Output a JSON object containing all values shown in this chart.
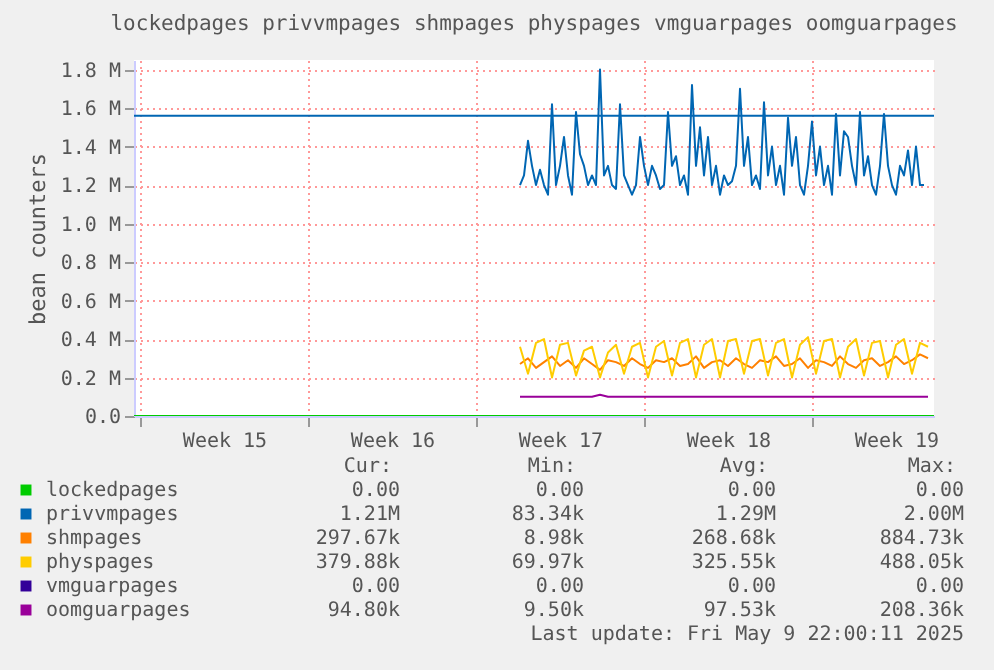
{
  "chart_data": {
    "type": "line",
    "title": "lockedpages privvmpages shmpages physpages vmguarpages oomguarpages",
    "ylabel": "bean counters",
    "xlim": [
      "2025-04-06T18:00",
      "2025-05-10T02:00"
    ],
    "ylim": [
      0,
      1850000
    ],
    "xticks": [
      {
        "value": "2025-04-07",
        "label": null
      },
      {
        "value": "2025-04-10T12:00",
        "label": "Week 15"
      },
      {
        "value": "2025-04-14",
        "label": null
      },
      {
        "value": "2025-04-17T12:00",
        "label": "Week 16"
      },
      {
        "value": "2025-04-21",
        "label": null
      },
      {
        "value": "2025-04-24T12:00",
        "label": "Week 17"
      },
      {
        "value": "2025-04-28",
        "label": null
      },
      {
        "value": "2025-05-01T12:00",
        "label": "Week 18"
      },
      {
        "value": "2025-05-05",
        "label": null
      },
      {
        "value": "2025-05-08T12:00",
        "label": "Week 19"
      }
    ],
    "yticks": [
      {
        "value": 0,
        "label": "0.0"
      },
      {
        "value": 200000,
        "label": "0.2 M"
      },
      {
        "value": 400000,
        "label": "0.4 M"
      },
      {
        "value": 600000,
        "label": "0.6 M"
      },
      {
        "value": 800000,
        "label": "0.8 M"
      },
      {
        "value": 1000000,
        "label": "1.0 M"
      },
      {
        "value": 1200000,
        "label": "1.2 M"
      },
      {
        "value": 1400000,
        "label": "1.4 M"
      },
      {
        "value": 1600000,
        "label": "1.6 M"
      },
      {
        "value": 1800000,
        "label": "1.8 M"
      }
    ],
    "grid": true,
    "legend": "bottom",
    "ref_lines": [
      {
        "axis": "y",
        "value": 1560000,
        "color": "#0066b3"
      }
    ],
    "series": [
      {
        "name": "lockedpages",
        "color": "#00cc00",
        "x": [
          "2025-04-06T18:00",
          "2025-05-10T02:00"
        ],
        "values": [
          0,
          0
        ]
      },
      {
        "name": "privvmpages",
        "color": "#0066b3",
        "x": [
          "2025-04-22T20:00",
          "2025-04-23T00:00",
          "2025-04-23T04:00",
          "2025-04-23T08:00",
          "2025-04-23T12:00",
          "2025-04-23T16:00",
          "2025-04-23T20:00",
          "2025-04-24T00:00",
          "2025-04-24T04:00",
          "2025-04-24T08:00",
          "2025-04-24T12:00",
          "2025-04-24T16:00",
          "2025-04-24T20:00",
          "2025-04-25T00:00",
          "2025-04-25T04:00",
          "2025-04-25T08:00",
          "2025-04-25T12:00",
          "2025-04-25T16:00",
          "2025-04-25T20:00",
          "2025-04-26T00:00",
          "2025-04-26T04:00",
          "2025-04-26T08:00",
          "2025-04-26T12:00",
          "2025-04-26T16:00",
          "2025-04-26T20:00",
          "2025-04-27T00:00",
          "2025-04-27T04:00",
          "2025-04-27T08:00",
          "2025-04-27T12:00",
          "2025-04-27T16:00",
          "2025-04-27T20:00",
          "2025-04-28T00:00",
          "2025-04-28T04:00",
          "2025-04-28T08:00",
          "2025-04-28T12:00",
          "2025-04-28T16:00",
          "2025-04-28T20:00",
          "2025-04-29T00:00",
          "2025-04-29T04:00",
          "2025-04-29T08:00",
          "2025-04-29T12:00",
          "2025-04-29T16:00",
          "2025-04-29T20:00",
          "2025-04-30T00:00",
          "2025-04-30T04:00",
          "2025-04-30T08:00",
          "2025-04-30T12:00",
          "2025-04-30T16:00",
          "2025-04-30T20:00",
          "2025-05-01T00:00",
          "2025-05-01T04:00",
          "2025-05-01T08:00",
          "2025-05-01T12:00",
          "2025-05-01T16:00",
          "2025-05-01T20:00",
          "2025-05-02T00:00",
          "2025-05-02T04:00",
          "2025-05-02T08:00",
          "2025-05-02T12:00",
          "2025-05-02T16:00",
          "2025-05-02T20:00",
          "2025-05-03T00:00",
          "2025-05-03T04:00",
          "2025-05-03T08:00",
          "2025-05-03T12:00",
          "2025-05-03T16:00",
          "2025-05-03T20:00",
          "2025-05-04T00:00",
          "2025-05-04T04:00",
          "2025-05-04T08:00",
          "2025-05-04T12:00",
          "2025-05-04T16:00",
          "2025-05-04T20:00",
          "2025-05-05T00:00",
          "2025-05-05T04:00",
          "2025-05-05T08:00",
          "2025-05-05T12:00",
          "2025-05-05T16:00",
          "2025-05-05T20:00",
          "2025-05-06T00:00",
          "2025-05-06T04:00",
          "2025-05-06T08:00",
          "2025-05-06T12:00",
          "2025-05-06T16:00",
          "2025-05-06T20:00",
          "2025-05-07T00:00",
          "2025-05-07T04:00",
          "2025-05-07T08:00",
          "2025-05-07T12:00",
          "2025-05-07T16:00",
          "2025-05-07T20:00",
          "2025-05-08T00:00",
          "2025-05-08T04:00",
          "2025-05-08T08:00",
          "2025-05-08T12:00",
          "2025-05-08T16:00",
          "2025-05-08T20:00",
          "2025-05-09T00:00",
          "2025-05-09T04:00",
          "2025-05-09T08:00",
          "2025-05-09T12:00",
          "2025-05-09T16:00"
        ],
        "values": [
          1200000,
          1250000,
          1430000,
          1300000,
          1200000,
          1280000,
          1200000,
          1150000,
          1620000,
          1200000,
          1300000,
          1450000,
          1250000,
          1150000,
          1580000,
          1360000,
          1300000,
          1200000,
          1250000,
          1200000,
          1800000,
          1250000,
          1300000,
          1200000,
          1180000,
          1620000,
          1250000,
          1200000,
          1150000,
          1200000,
          1450000,
          1300000,
          1200000,
          1300000,
          1250000,
          1180000,
          1200000,
          1580000,
          1300000,
          1350000,
          1200000,
          1250000,
          1150000,
          1720000,
          1300000,
          1500000,
          1250000,
          1450000,
          1200000,
          1300000,
          1150000,
          1250000,
          1200000,
          1220000,
          1300000,
          1700000,
          1300000,
          1450000,
          1200000,
          1250000,
          1180000,
          1630000,
          1250000,
          1400000,
          1200000,
          1300000,
          1150000,
          1550000,
          1300000,
          1450000,
          1200000,
          1150000,
          1300000,
          1530000,
          1250000,
          1400000,
          1200000,
          1300000,
          1150000,
          1570000,
          1250000,
          1480000,
          1450000,
          1300000,
          1200000,
          1580000,
          1250000,
          1350000,
          1200000,
          1150000,
          1300000,
          1570000,
          1300000,
          1200000,
          1150000,
          1300000,
          1250000,
          1380000,
          1200000,
          1400000,
          1200000,
          1200000
        ]
      },
      {
        "name": "shmpages",
        "color": "#ff8000",
        "x": [
          "2025-04-22T20:00",
          "2025-04-23T04:00",
          "2025-04-23T12:00",
          "2025-04-23T20:00",
          "2025-04-24T04:00",
          "2025-04-24T12:00",
          "2025-04-24T20:00",
          "2025-04-25T04:00",
          "2025-04-25T12:00",
          "2025-04-25T20:00",
          "2025-04-26T04:00",
          "2025-04-26T12:00",
          "2025-04-26T20:00",
          "2025-04-27T04:00",
          "2025-04-27T12:00",
          "2025-04-27T20:00",
          "2025-04-28T04:00",
          "2025-04-28T12:00",
          "2025-04-28T20:00",
          "2025-04-29T04:00",
          "2025-04-29T12:00",
          "2025-04-29T20:00",
          "2025-04-30T04:00",
          "2025-04-30T12:00",
          "2025-04-30T20:00",
          "2025-05-01T04:00",
          "2025-05-01T12:00",
          "2025-05-01T20:00",
          "2025-05-02T04:00",
          "2025-05-02T12:00",
          "2025-05-02T20:00",
          "2025-05-03T04:00",
          "2025-05-03T12:00",
          "2025-05-03T20:00",
          "2025-05-04T04:00",
          "2025-05-04T12:00",
          "2025-05-04T20:00",
          "2025-05-05T04:00",
          "2025-05-05T12:00",
          "2025-05-05T20:00",
          "2025-05-06T04:00",
          "2025-05-06T12:00",
          "2025-05-06T20:00",
          "2025-05-07T04:00",
          "2025-05-07T12:00",
          "2025-05-07T20:00",
          "2025-05-08T04:00",
          "2025-05-08T12:00",
          "2025-05-08T20:00",
          "2025-05-09T04:00",
          "2025-05-09T12:00",
          "2025-05-09T20:00"
        ],
        "values": [
          270000,
          300000,
          250000,
          280000,
          310000,
          260000,
          290000,
          250000,
          300000,
          270000,
          240000,
          290000,
          280000,
          260000,
          300000,
          270000,
          250000,
          290000,
          280000,
          300000,
          260000,
          270000,
          310000,
          250000,
          280000,
          290000,
          260000,
          300000,
          270000,
          250000,
          290000,
          280000,
          310000,
          260000,
          270000,
          300000,
          250000,
          290000,
          280000,
          260000,
          310000,
          270000,
          250000,
          290000,
          300000,
          260000,
          280000,
          310000,
          270000,
          290000,
          320000,
          300000
        ]
      },
      {
        "name": "physpages",
        "color": "#ffcc00",
        "x": [
          "2025-04-22T20:00",
          "2025-04-23T04:00",
          "2025-04-23T12:00",
          "2025-04-23T20:00",
          "2025-04-24T04:00",
          "2025-04-24T12:00",
          "2025-04-24T20:00",
          "2025-04-25T04:00",
          "2025-04-25T12:00",
          "2025-04-25T20:00",
          "2025-04-26T04:00",
          "2025-04-26T12:00",
          "2025-04-26T20:00",
          "2025-04-27T04:00",
          "2025-04-27T12:00",
          "2025-04-27T20:00",
          "2025-04-28T04:00",
          "2025-04-28T12:00",
          "2025-04-28T20:00",
          "2025-04-29T04:00",
          "2025-04-29T12:00",
          "2025-04-29T20:00",
          "2025-04-30T04:00",
          "2025-04-30T12:00",
          "2025-04-30T20:00",
          "2025-05-01T04:00",
          "2025-05-01T12:00",
          "2025-05-01T20:00",
          "2025-05-02T04:00",
          "2025-05-02T12:00",
          "2025-05-02T20:00",
          "2025-05-03T04:00",
          "2025-05-03T12:00",
          "2025-05-03T20:00",
          "2025-05-04T04:00",
          "2025-05-04T12:00",
          "2025-05-04T20:00",
          "2025-05-05T04:00",
          "2025-05-05T12:00",
          "2025-05-05T20:00",
          "2025-05-06T04:00",
          "2025-05-06T12:00",
          "2025-05-06T20:00",
          "2025-05-07T04:00",
          "2025-05-07T12:00",
          "2025-05-07T20:00",
          "2025-05-08T04:00",
          "2025-05-08T12:00",
          "2025-05-08T20:00",
          "2025-05-09T04:00",
          "2025-05-09T12:00",
          "2025-05-09T20:00"
        ],
        "values": [
          360000,
          220000,
          380000,
          400000,
          200000,
          370000,
          380000,
          210000,
          340000,
          360000,
          200000,
          330000,
          370000,
          220000,
          360000,
          380000,
          200000,
          360000,
          390000,
          210000,
          380000,
          400000,
          200000,
          370000,
          400000,
          200000,
          390000,
          400000,
          220000,
          390000,
          400000,
          210000,
          380000,
          400000,
          200000,
          370000,
          410000,
          220000,
          390000,
          400000,
          200000,
          360000,
          400000,
          210000,
          380000,
          390000,
          200000,
          370000,
          400000,
          220000,
          380000,
          360000
        ]
      },
      {
        "name": "vmguarpages",
        "color": "#330099"
      },
      {
        "name": "oomguarpages",
        "color": "#990099",
        "x": [
          "2025-04-22T20:00",
          "2025-04-23T04:00",
          "2025-04-23T12:00",
          "2025-04-23T20:00",
          "2025-04-24T04:00",
          "2025-04-24T12:00",
          "2025-04-24T20:00",
          "2025-04-25T04:00",
          "2025-04-25T12:00",
          "2025-04-25T20:00",
          "2025-04-26T04:00",
          "2025-04-26T12:00",
          "2025-04-26T20:00",
          "2025-04-27T04:00",
          "2025-04-27T12:00",
          "2025-04-27T20:00",
          "2025-04-28T04:00",
          "2025-04-28T12:00",
          "2025-04-28T20:00",
          "2025-04-29T04:00",
          "2025-04-29T12:00",
          "2025-04-29T20:00",
          "2025-04-30T04:00",
          "2025-04-30T12:00",
          "2025-04-30T20:00",
          "2025-05-01T04:00",
          "2025-05-01T12:00",
          "2025-05-01T20:00",
          "2025-05-02T04:00",
          "2025-05-02T12:00",
          "2025-05-02T20:00",
          "2025-05-03T04:00",
          "2025-05-03T12:00",
          "2025-05-03T20:00",
          "2025-05-04T04:00",
          "2025-05-04T12:00",
          "2025-05-04T20:00",
          "2025-05-05T04:00",
          "2025-05-05T12:00",
          "2025-05-05T20:00",
          "2025-05-06T04:00",
          "2025-05-06T12:00",
          "2025-05-06T20:00",
          "2025-05-07T04:00",
          "2025-05-07T12:00",
          "2025-05-07T20:00",
          "2025-05-08T04:00",
          "2025-05-08T12:00",
          "2025-05-08T20:00",
          "2025-05-09T04:00",
          "2025-05-09T12:00",
          "2025-05-09T20:00"
        ],
        "values": [
          100000,
          100000,
          100000,
          100000,
          100000,
          100000,
          100000,
          100000,
          100000,
          100000,
          110000,
          100000,
          100000,
          100000,
          100000,
          100000,
          100000,
          100000,
          100000,
          100000,
          100000,
          100000,
          100000,
          100000,
          100000,
          100000,
          100000,
          100000,
          100000,
          100000,
          100000,
          100000,
          100000,
          100000,
          100000,
          100000,
          100000,
          100000,
          100000,
          100000,
          100000,
          100000,
          100000,
          100000,
          100000,
          100000,
          100000,
          100000,
          100000,
          100000,
          100000,
          100000
        ]
      }
    ],
    "annotations": [
      "Cur:",
      "Min:",
      "Avg:",
      "Max:",
      "0.00",
      "0.00",
      "0.00",
      "0.00",
      "1.21M",
      "83.34k",
      "1.29M",
      "2.00M",
      "297.67k",
      "8.98k",
      "268.68k",
      "884.73k",
      "379.88k",
      "69.97k",
      "325.55k",
      "488.05k",
      "0.00",
      "0.00",
      "0.00",
      "0.00",
      "94.80k",
      "9.50k",
      "97.53k",
      "208.36k",
      "Last update: Fri May  9 22:00:11 2025"
    ]
  }
}
